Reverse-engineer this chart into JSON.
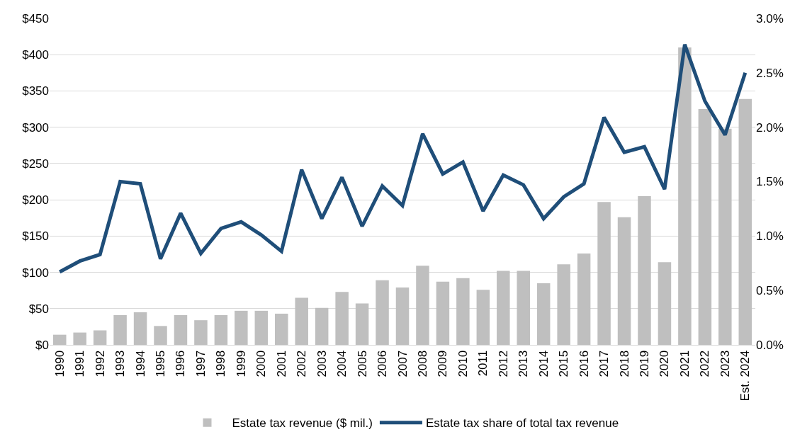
{
  "chart_data": {
    "type": "bar",
    "categories": [
      "1990",
      "1991",
      "1992",
      "1993",
      "1994",
      "1995",
      "1996",
      "1997",
      "1998",
      "1999",
      "2000",
      "2001",
      "2002",
      "2003",
      "2004",
      "2005",
      "2006",
      "2007",
      "2008",
      "2009",
      "2010",
      "2011",
      "2012",
      "2013",
      "2014",
      "2015",
      "2016",
      "2017",
      "2018",
      "2019",
      "2020",
      "2021",
      "2022",
      "2023",
      "Est. 2024"
    ],
    "series": [
      {
        "name": "Estate tax revenue ($ mil.)",
        "color": "#bfbfbf",
        "values": [
          14,
          17,
          20,
          41,
          45,
          26,
          41,
          34,
          41,
          47,
          47,
          43,
          65,
          51,
          73,
          57,
          89,
          79,
          109,
          87,
          92,
          76,
          102,
          102,
          85,
          111,
          126,
          197,
          176,
          205,
          114,
          410,
          325,
          298,
          339
        ]
      },
      {
        "name": "Estate tax share of total tax revenue",
        "color": "#1f4e79",
        "type": "line",
        "axis": "y2",
        "values": [
          0.67,
          0.77,
          0.83,
          1.5,
          1.48,
          0.79,
          1.21,
          0.84,
          1.07,
          1.13,
          1.01,
          0.86,
          1.61,
          1.16,
          1.54,
          1.09,
          1.46,
          1.28,
          1.94,
          1.57,
          1.68,
          1.23,
          1.56,
          1.47,
          1.16,
          1.36,
          1.48,
          2.09,
          1.77,
          1.82,
          1.43,
          2.76,
          2.24,
          1.93,
          2.5
        ]
      }
    ],
    "ylim": [
      0,
      450
    ],
    "yticks": [
      {
        "value": 0,
        "label": "$0"
      },
      {
        "value": 50,
        "label": "$50"
      },
      {
        "value": 100,
        "label": "$100"
      },
      {
        "value": 150,
        "label": "$150"
      },
      {
        "value": 200,
        "label": "$200"
      },
      {
        "value": 250,
        "label": "$250"
      },
      {
        "value": 300,
        "label": "$300"
      },
      {
        "value": 350,
        "label": "$350"
      },
      {
        "value": 400,
        "label": "$400"
      },
      {
        "value": 450,
        "label": "$450"
      }
    ],
    "y2lim": [
      0,
      3
    ],
    "y2ticks": [
      {
        "value": 0,
        "label": "0.0%"
      },
      {
        "value": 0.5,
        "label": "0.5%"
      },
      {
        "value": 1,
        "label": "1.0%"
      },
      {
        "value": 1.5,
        "label": "1.5%"
      },
      {
        "value": 2,
        "label": "2.0%"
      },
      {
        "value": 2.5,
        "label": "2.5%"
      },
      {
        "value": 3,
        "label": "3.0%"
      }
    ],
    "grid": "y",
    "legend": "bottom",
    "marker": "none",
    "line_style": "solid"
  }
}
